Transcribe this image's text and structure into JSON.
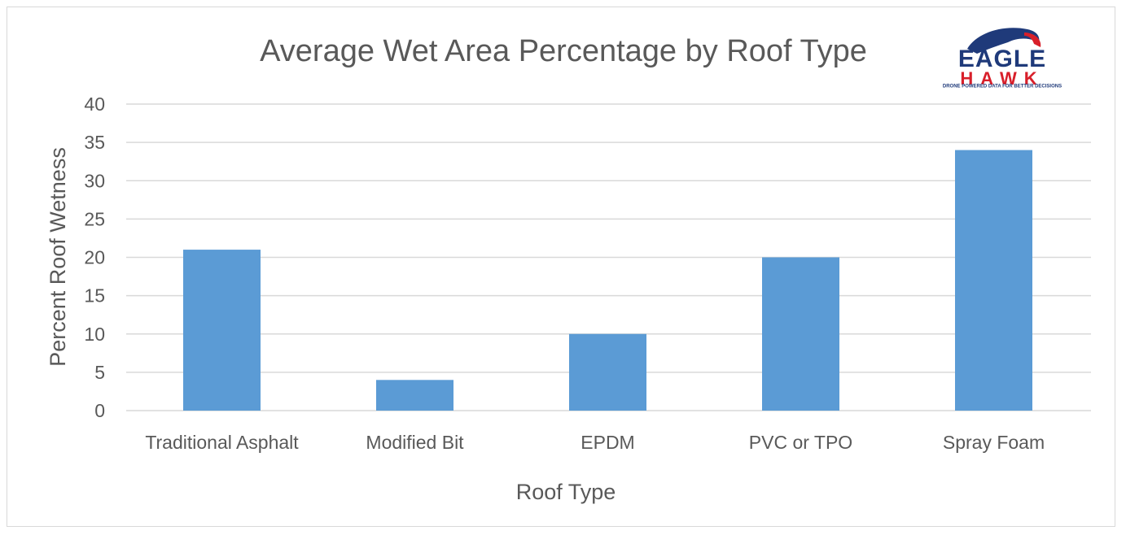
{
  "colors": {
    "bar": "#5b9bd5",
    "grid": "#d9d9d9",
    "text": "#595959",
    "logo_blue": "#1f3a7a",
    "logo_red": "#d81f2a"
  },
  "logo": {
    "line1": "EAGLE",
    "line2": "HAWK",
    "tagline": "DRONE POWERED DATA FOR BETTER DECISIONS"
  },
  "chart_data": {
    "type": "bar",
    "title": "Average Wet Area Percentage by Roof Type",
    "xlabel": "Roof Type",
    "ylabel": "Percent Roof Wetness",
    "categories": [
      "Traditional Asphalt",
      "Modified Bit",
      "EPDM",
      "PVC or TPO",
      "Spray Foam"
    ],
    "values": [
      21,
      4,
      10,
      20,
      34
    ],
    "ylim": [
      0,
      40
    ],
    "yticks": [
      0,
      5,
      10,
      15,
      20,
      25,
      30,
      35,
      40
    ],
    "grid": true,
    "legend": "none"
  }
}
